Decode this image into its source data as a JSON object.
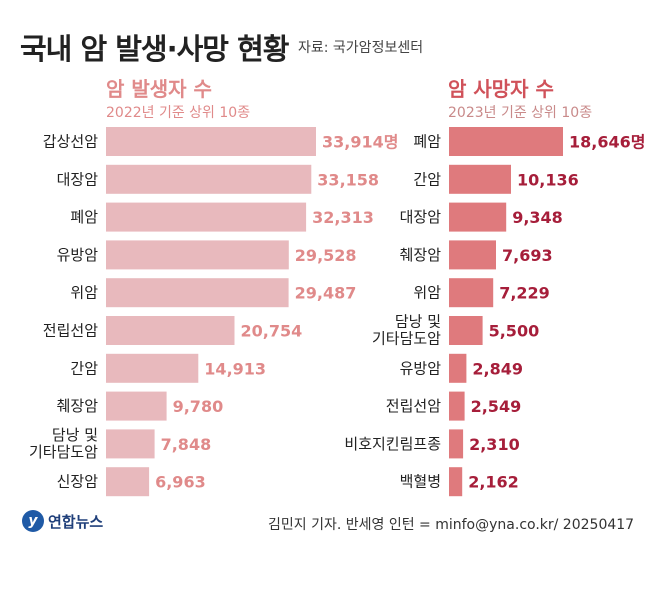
{
  "header": {
    "title": "국내 암 발생·사망 현황",
    "source": "자료: 국가암정보센터"
  },
  "footer": {
    "logo_text": "연합뉴스",
    "credit": "김민지 기자. 반세영 인턴 = minfo@yna.co.kr/ 20250417"
  },
  "colors": {
    "left_bar": "#e8b9bd",
    "left_value": "#e08a8a",
    "right_bar": "#df7a7d",
    "right_value": "#a61e3a",
    "label": "#222222"
  },
  "chart_data": [
    {
      "type": "bar",
      "orientation": "horizontal",
      "title": "암 발생자 수",
      "subtitle": "2022년 기준 상위 10종",
      "unit": "명",
      "categories": [
        "갑상선암",
        "대장암",
        "폐암",
        "유방암",
        "위암",
        "전립선암",
        "간암",
        "췌장암",
        "담낭 및\n기타담도암",
        "신장암"
      ],
      "values": [
        33914,
        33158,
        32313,
        29528,
        29487,
        20754,
        14913,
        9780,
        7848,
        6963
      ],
      "value_labels": [
        "33,914명",
        "33,158",
        "32,313",
        "29,528",
        "29,487",
        "20,754",
        "14,913",
        "9,780",
        "7,848",
        "6,963"
      ]
    },
    {
      "type": "bar",
      "orientation": "horizontal",
      "title": "암 사망자 수",
      "subtitle": "2023년 기준 상위 10종",
      "unit": "명",
      "categories": [
        "폐암",
        "간암",
        "대장암",
        "췌장암",
        "위암",
        "담낭 및\n기타담도암",
        "유방암",
        "전립선암",
        "비호지킨림프종",
        "백혈병"
      ],
      "values": [
        18646,
        10136,
        9348,
        7693,
        7229,
        5500,
        2849,
        2549,
        2310,
        2162
      ],
      "value_labels": [
        "18,646명",
        "10,136",
        "9,348",
        "7,693",
        "7,229",
        "5,500",
        "2,849",
        "2,549",
        "2,310",
        "2,162"
      ]
    }
  ]
}
